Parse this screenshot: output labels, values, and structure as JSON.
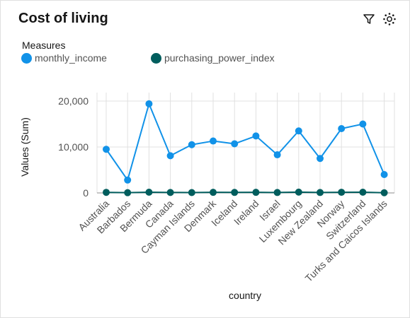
{
  "header": {
    "title": "Cost of living",
    "filter_icon": "filter-icon",
    "settings_icon": "settings-icon"
  },
  "legend": {
    "title": "Measures",
    "placement": "top-left"
  },
  "colors": {
    "monthly_income": "#1192e8",
    "purchasing_power_index": "#005d5d",
    "grid": "#e0e0e0"
  },
  "chart_data": {
    "type": "line",
    "title": "Cost of living",
    "xlabel": "country",
    "ylabel": "Values (Sum)",
    "ylim": [
      0,
      20000
    ],
    "yticks": [
      0,
      10000,
      20000
    ],
    "ytick_labels": [
      "0",
      "10,000",
      "20,000"
    ],
    "grid": true,
    "legend_title": "Measures",
    "categories": [
      "Australia",
      "Barbados",
      "Bermuda",
      "Canada",
      "Cayman Islands",
      "Denmark",
      "Iceland",
      "Ireland",
      "Israel",
      "Luxembourg",
      "New Zealand",
      "Norway",
      "Switzerland",
      "Turks and Caicos Islands"
    ],
    "series": [
      {
        "name": "monthly_income",
        "values": [
          9500,
          2800,
          19400,
          8100,
          10500,
          11300,
          10700,
          12400,
          8300,
          13500,
          7500,
          14000,
          15000,
          4000
        ]
      },
      {
        "name": "purchasing_power_index",
        "values": [
          120,
          50,
          150,
          100,
          80,
          130,
          110,
          130,
          90,
          170,
          90,
          140,
          150,
          40
        ]
      }
    ]
  }
}
